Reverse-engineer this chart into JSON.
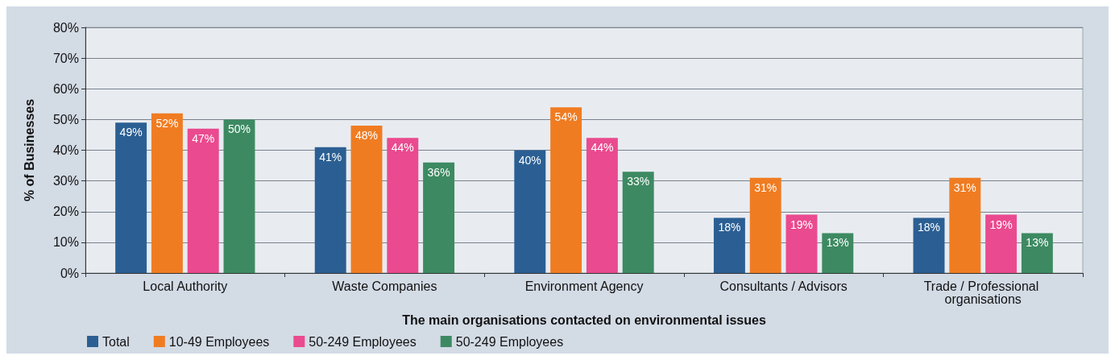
{
  "chart_data": {
    "type": "bar",
    "xlabel": "The main organisations contacted on environmental issues",
    "ylabel": "% of Businesses",
    "categories": [
      "Local Authority",
      "Waste Companies",
      "Environment Agency",
      "Consultants / Advisors",
      "Trade / Professional organisations"
    ],
    "series": [
      {
        "name": "Total",
        "color": "#2b5f93",
        "values": [
          49,
          41,
          40,
          18,
          18
        ],
        "value_labels": [
          "49%",
          "41%",
          "40%",
          "18%",
          "18%"
        ]
      },
      {
        "name": "10-49 Employees",
        "color": "#f07c22",
        "values": [
          52,
          48,
          54,
          31,
          31
        ],
        "value_labels": [
          "52%",
          "48%",
          "54%",
          "31%",
          "31%"
        ]
      },
      {
        "name": "50-249 Employees",
        "color": "#ea4a8f",
        "values": [
          47,
          44,
          44,
          19,
          19
        ],
        "value_labels": [
          "47%",
          "44%",
          "44%",
          "19%",
          "19%"
        ]
      },
      {
        "name": "50-249 Employees",
        "color": "#3d8a62",
        "values": [
          50,
          36,
          33,
          13,
          13
        ],
        "value_labels": [
          "50%",
          "36%",
          "33%",
          "13%",
          "13%"
        ]
      }
    ],
    "ylim": [
      0,
      80
    ],
    "yticks": [
      {
        "value": 0,
        "label": "0%"
      },
      {
        "value": 10,
        "label": "10%"
      },
      {
        "value": 20,
        "label": "20%"
      },
      {
        "value": 30,
        "label": "30%"
      },
      {
        "value": 40,
        "label": "40%"
      },
      {
        "value": 50,
        "label": "50%"
      },
      {
        "value": 60,
        "label": "60%"
      },
      {
        "value": 70,
        "label": "70%"
      },
      {
        "value": 80,
        "label": "80%"
      }
    ],
    "grid": "y",
    "legend": "bottom left"
  }
}
